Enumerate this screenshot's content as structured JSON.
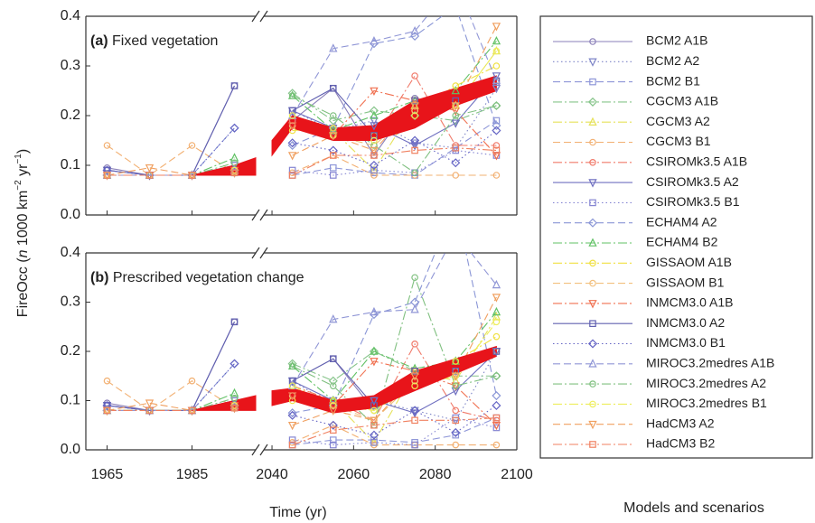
{
  "chart_data": {
    "type": "line",
    "ylabel": [
      "FireOcc (",
      "n",
      " 1000 km",
      "−2",
      " yr",
      "−1",
      ")"
    ],
    "xlabel": "Time (yr)",
    "legend_title": "Models and scenarios",
    "x": [
      1965,
      1975,
      1985,
      1995,
      2045,
      2055,
      2065,
      2075,
      2085,
      2095
    ],
    "band_x": [
      1985,
      1995,
      2000,
      2040,
      2045,
      2055,
      2065,
      2075,
      2085,
      2095
    ],
    "band_color": "#e8141a",
    "xlim": [
      [
        1960,
        2000
      ],
      [
        2038,
        2100
      ]
    ],
    "xticks": [
      1965,
      1985,
      2040,
      2060,
      2080,
      2100
    ],
    "ylim": [
      0,
      0.4
    ],
    "yticks": [
      {
        "value": 0,
        "label": "0.0"
      },
      0.1,
      0.2,
      0.3,
      0.4
    ],
    "series": [
      {
        "name": "BCM2 A1B",
        "color": "#8a7fb8",
        "marker": "circle",
        "dash": "solid"
      },
      {
        "name": "BCM2 A2",
        "color": "#7f86c8",
        "marker": "tri-down",
        "dash": "dotted"
      },
      {
        "name": "BCM2 B1",
        "color": "#8e96d8",
        "marker": "square",
        "dash": "dashed"
      },
      {
        "name": "CGCM3 A1B",
        "color": "#86c48a",
        "marker": "diamond",
        "dash": "dashdot"
      },
      {
        "name": "CGCM3 A2",
        "color": "#e6e25a",
        "marker": "tri-up",
        "dash": "dashdot"
      },
      {
        "name": "CGCM3 B1",
        "color": "#f2b072",
        "marker": "circle",
        "dash": "dashed"
      },
      {
        "name": "CSIROMk3.5 A1B",
        "color": "#f07a6a",
        "marker": "circle",
        "dash": "dashdot"
      },
      {
        "name": "CSIROMk3.5 A2",
        "color": "#6f6fc0",
        "marker": "tri-down",
        "dash": "solid"
      },
      {
        "name": "CSIROMk3.5 B1",
        "color": "#8585d2",
        "marker": "square",
        "dash": "dotted"
      },
      {
        "name": "ECHAM4 A2",
        "color": "#8a96d6",
        "marker": "diamond",
        "dash": "dashed"
      },
      {
        "name": "ECHAM4 B2",
        "color": "#62c266",
        "marker": "tri-up",
        "dash": "dashdot"
      },
      {
        "name": "GISSAOM A1B",
        "color": "#f0e040",
        "marker": "circle",
        "dash": "dashdot"
      },
      {
        "name": "GISSAOM B1",
        "color": "#f2c07e",
        "marker": "circle",
        "dash": "dashed"
      },
      {
        "name": "INMCM3.0 A1B",
        "color": "#f07050",
        "marker": "tri-down",
        "dash": "dashdot"
      },
      {
        "name": "INMCM3.0 A2",
        "color": "#6060b0",
        "marker": "square",
        "dash": "solid"
      },
      {
        "name": "INMCM3.0 B1",
        "color": "#6464c4",
        "marker": "diamond",
        "dash": "dotted"
      },
      {
        "name": "MIROC3.2medres A1B",
        "color": "#9096d6",
        "marker": "tri-up",
        "dash": "dashed"
      },
      {
        "name": "MIROC3.2medres A2",
        "color": "#80c080",
        "marker": "circle",
        "dash": "dashdot"
      },
      {
        "name": "MIROC3.2medres B1",
        "color": "#eeee5c",
        "marker": "circle",
        "dash": "dashdot"
      },
      {
        "name": "HadCM3 A2",
        "color": "#f0a060",
        "marker": "tri-down",
        "dash": "dashed"
      },
      {
        "name": "HadCM3 B2",
        "color": "#f08060",
        "marker": "square",
        "dash": "dashdot"
      }
    ],
    "panels": [
      {
        "label": "(a)",
        "title": " Fixed vegetation",
        "band_lower": [
          0.08,
          0.08,
          0.08,
          0.12,
          0.175,
          0.15,
          0.15,
          0.175,
          0.22,
          0.25
        ],
        "band_upper": [
          0.08,
          0.1,
          0.115,
          0.15,
          0.2,
          0.175,
          0.18,
          0.23,
          0.255,
          0.28
        ],
        "values": [
          [
            0.095,
            0.08,
            0.08,
            0.26,
            0.19,
            0.255,
            0.12,
            0.235,
            0.22,
            0.26
          ],
          [
            0.09,
            0.08,
            0.08,
            0.085,
            0.21,
            0.17,
            0.19,
            0.145,
            0.135,
            0.255
          ],
          [
            0.08,
            0.08,
            0.08,
            0.085,
            0.08,
            0.095,
            0.085,
            0.08,
            0.135,
            0.19
          ],
          [
            0.08,
            0.08,
            0.08,
            0.09,
            0.245,
            0.19,
            0.21,
            0.2,
            0.19,
            0.22
          ],
          [
            0.08,
            0.08,
            0.08,
            0.09,
            0.2,
            0.17,
            0.09,
            0.22,
            0.22,
            0.33
          ],
          [
            0.14,
            0.08,
            0.14,
            0.085,
            0.085,
            0.12,
            0.08,
            0.08,
            0.08,
            0.08
          ],
          [
            0.08,
            0.08,
            0.08,
            0.09,
            0.19,
            0.17,
            0.15,
            0.28,
            0.14,
            0.14
          ],
          [
            0.09,
            0.08,
            0.08,
            0.1,
            0.21,
            0.175,
            0.18,
            0.14,
            0.185,
            0.28
          ],
          [
            0.08,
            0.08,
            0.08,
            0.085,
            0.09,
            0.08,
            0.09,
            0.085,
            0.13,
            0.12
          ],
          [
            0.08,
            0.08,
            0.08,
            0.175,
            0.14,
            0.175,
            0.345,
            0.36,
            0.42,
            0.18
          ],
          [
            0.08,
            0.08,
            0.08,
            0.115,
            0.24,
            0.17,
            0.2,
            0.23,
            0.25,
            0.35
          ],
          [
            0.08,
            0.08,
            0.08,
            0.085,
            0.17,
            0.175,
            0.16,
            0.21,
            0.26,
            0.3
          ],
          [
            0.08,
            0.08,
            0.08,
            0.085,
            0.18,
            0.16,
            0.14,
            0.21,
            0.22,
            0.27
          ],
          [
            0.08,
            0.08,
            0.08,
            0.09,
            0.18,
            0.16,
            0.25,
            0.23,
            0.21,
            0.12
          ],
          [
            0.09,
            0.08,
            0.08,
            0.26,
            0.21,
            0.255,
            0.16,
            0.23,
            0.23,
            0.27
          ],
          [
            0.09,
            0.08,
            0.08,
            0.175,
            0.145,
            0.13,
            0.1,
            0.15,
            0.105,
            0.17
          ],
          [
            0.08,
            0.08,
            0.08,
            0.09,
            0.2,
            0.335,
            0.35,
            0.37,
            0.47,
            0.27
          ],
          [
            0.08,
            0.08,
            0.08,
            0.105,
            0.24,
            0.2,
            0.14,
            0.085,
            0.2,
            0.22
          ],
          [
            0.08,
            0.08,
            0.08,
            0.09,
            0.2,
            0.16,
            0.15,
            0.2,
            0.22,
            0.33
          ],
          [
            0.08,
            0.095,
            0.08,
            0.085,
            0.12,
            0.16,
            0.13,
            0.22,
            0.22,
            0.38
          ],
          [
            0.08,
            0.08,
            0.08,
            0.085,
            0.08,
            0.12,
            0.12,
            0.13,
            0.135,
            0.13
          ]
        ]
      },
      {
        "label": "(b)",
        "title": " Prescribed vegetation change",
        "band_lower": [
          0.08,
          0.08,
          0.08,
          0.09,
          0.1,
          0.075,
          0.085,
          0.12,
          0.155,
          0.19
        ],
        "band_upper": [
          0.08,
          0.1,
          0.11,
          0.12,
          0.125,
          0.1,
          0.11,
          0.16,
          0.185,
          0.21
        ],
        "values": [
          [
            0.095,
            0.08,
            0.08,
            0.26,
            0.14,
            0.185,
            0.08,
            0.16,
            0.18,
            0.2
          ],
          [
            0.09,
            0.08,
            0.08,
            0.085,
            0.14,
            0.09,
            0.1,
            0.08,
            0.06,
            0.2
          ],
          [
            0.08,
            0.08,
            0.08,
            0.085,
            0.01,
            0.02,
            0.02,
            0.015,
            0.03,
            0.065
          ],
          [
            0.08,
            0.08,
            0.08,
            0.09,
            0.175,
            0.14,
            0.2,
            0.16,
            0.15,
            0.15
          ],
          [
            0.08,
            0.08,
            0.08,
            0.09,
            0.13,
            0.1,
            0.015,
            0.16,
            0.14,
            0.27
          ],
          [
            0.14,
            0.08,
            0.14,
            0.085,
            0.015,
            0.05,
            0.01,
            0.01,
            0.01,
            0.01
          ],
          [
            0.08,
            0.08,
            0.08,
            0.09,
            0.13,
            0.1,
            0.06,
            0.215,
            0.08,
            0.06
          ],
          [
            0.09,
            0.08,
            0.08,
            0.1,
            0.14,
            0.1,
            0.1,
            0.075,
            0.12,
            0.2
          ],
          [
            0.08,
            0.08,
            0.08,
            0.085,
            0.02,
            0.01,
            0.015,
            0.01,
            0.065,
            0.045
          ],
          [
            0.08,
            0.08,
            0.08,
            0.175,
            0.075,
            0.09,
            0.275,
            0.3,
            0.5,
            0.11
          ],
          [
            0.08,
            0.08,
            0.08,
            0.115,
            0.17,
            0.1,
            0.2,
            0.165,
            0.18,
            0.28
          ],
          [
            0.08,
            0.08,
            0.08,
            0.085,
            0.1,
            0.1,
            0.08,
            0.14,
            0.18,
            0.23
          ],
          [
            0.08,
            0.08,
            0.08,
            0.085,
            0.11,
            0.09,
            0.06,
            0.14,
            0.16,
            0.2
          ],
          [
            0.08,
            0.08,
            0.08,
            0.09,
            0.11,
            0.09,
            0.18,
            0.16,
            0.13,
            0.05
          ],
          [
            0.09,
            0.08,
            0.08,
            0.26,
            0.14,
            0.185,
            0.09,
            0.16,
            0.16,
            0.2
          ],
          [
            0.09,
            0.08,
            0.08,
            0.175,
            0.07,
            0.05,
            0.03,
            0.08,
            0.035,
            0.09
          ],
          [
            0.08,
            0.08,
            0.08,
            0.09,
            0.13,
            0.265,
            0.28,
            0.285,
            0.44,
            0.335
          ],
          [
            0.08,
            0.08,
            0.08,
            0.105,
            0.17,
            0.13,
            0.05,
            0.35,
            0.13,
            0.15
          ],
          [
            0.08,
            0.08,
            0.08,
            0.09,
            0.13,
            0.09,
            0.08,
            0.13,
            0.15,
            0.26
          ],
          [
            0.08,
            0.095,
            0.08,
            0.085,
            0.05,
            0.08,
            0.06,
            0.15,
            0.15,
            0.31
          ],
          [
            0.08,
            0.08,
            0.08,
            0.085,
            0.01,
            0.04,
            0.05,
            0.06,
            0.06,
            0.065
          ]
        ]
      }
    ]
  }
}
